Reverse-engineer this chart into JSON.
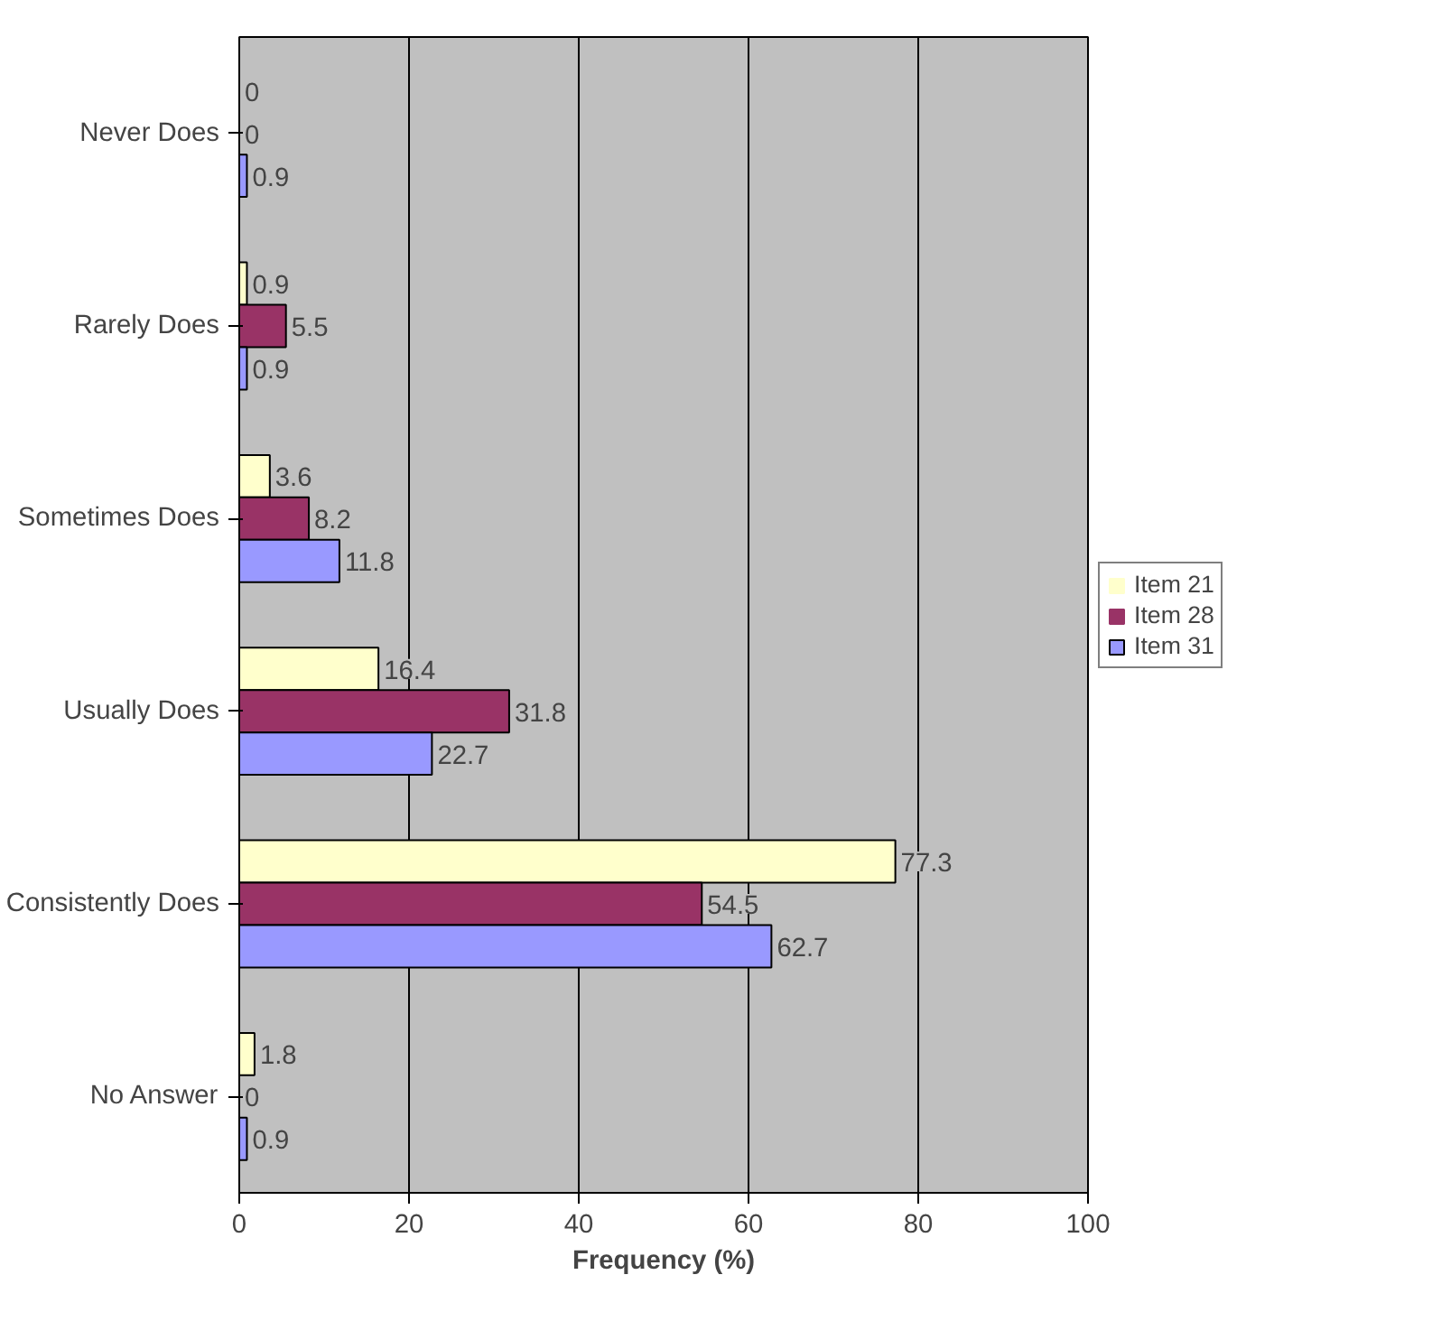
{
  "chart_data": {
    "type": "bar",
    "orientation": "horizontal",
    "xlabel": "Frequency (%)",
    "categories": [
      "Never Does",
      "Rarely Does",
      "Sometimes Does",
      "Usually Does",
      "Consistently Does",
      "No Answer"
    ],
    "series": [
      {
        "name": "Item 21",
        "color": "#ffffcc",
        "values": [
          0,
          0.9,
          3.6,
          16.4,
          77.3,
          1.8
        ]
      },
      {
        "name": "Item 28",
        "color": "#993366",
        "values": [
          0,
          5.5,
          8.2,
          31.8,
          54.5,
          0
        ]
      },
      {
        "name": "Item 31",
        "color": "#9999ff",
        "values": [
          0.9,
          0.9,
          11.8,
          22.7,
          62.7,
          0.9
        ]
      }
    ],
    "xlim": [
      0,
      100
    ],
    "xticks": [
      0,
      20,
      40,
      60,
      80,
      100
    ],
    "grid": "x",
    "legend": "right",
    "data_labels": true
  }
}
